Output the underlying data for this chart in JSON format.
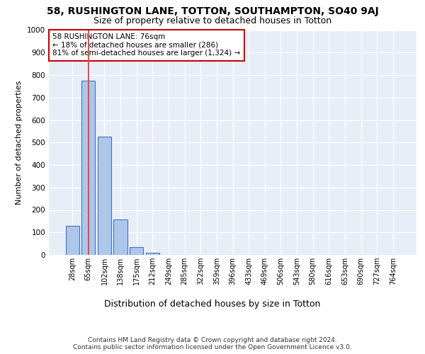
{
  "title1": "58, RUSHINGTON LANE, TOTTON, SOUTHAMPTON, SO40 9AJ",
  "title2": "Size of property relative to detached houses in Totton",
  "xlabel": "Distribution of detached houses by size in Totton",
  "ylabel": "Number of detached properties",
  "footer1": "Contains HM Land Registry data © Crown copyright and database right 2024.",
  "footer2": "Contains public sector information licensed under the Open Government Licence v3.0.",
  "bar_labels": [
    "28sqm",
    "65sqm",
    "102sqm",
    "138sqm",
    "175sqm",
    "212sqm",
    "249sqm",
    "285sqm",
    "322sqm",
    "359sqm",
    "396sqm",
    "433sqm",
    "469sqm",
    "506sqm",
    "543sqm",
    "580sqm",
    "616sqm",
    "653sqm",
    "690sqm",
    "727sqm",
    "764sqm"
  ],
  "bar_values": [
    130,
    775,
    525,
    158,
    35,
    10,
    0,
    0,
    0,
    0,
    0,
    0,
    0,
    0,
    0,
    0,
    0,
    0,
    0,
    0,
    0
  ],
  "bar_color": "#aec6e8",
  "bar_edge_color": "#4472c4",
  "annotation_text": "58 RUSHINGTON LANE: 76sqm\n← 18% of detached houses are smaller (286)\n81% of semi-detached houses are larger (1,324) →",
  "vline_x": 1,
  "vline_color": "#e05050",
  "annotation_box_edge": "#cc0000",
  "ylim": [
    0,
    1000
  ],
  "yticks": [
    0,
    100,
    200,
    300,
    400,
    500,
    600,
    700,
    800,
    900,
    1000
  ],
  "bg_color": "#e8eef8",
  "plot_bg_color": "#e8eef8",
  "title1_fontsize": 10,
  "title2_fontsize": 9,
  "ylabel_fontsize": 8,
  "xlabel_fontsize": 9,
  "tick_fontsize": 7,
  "footer_fontsize": 6.5,
  "ann_fontsize": 7.5
}
